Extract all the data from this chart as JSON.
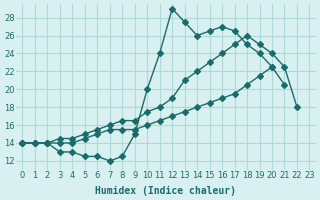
{
  "title": "",
  "xlabel": "Humidex (Indice chaleur)",
  "ylabel": "",
  "bg_color": "#d8f0f0",
  "grid_color": "#b0d8d8",
  "line_color": "#1a6b6b",
  "xlim": [
    -0.5,
    23.5
  ],
  "ylim": [
    11,
    29.5
  ],
  "yticks": [
    12,
    14,
    16,
    18,
    20,
    22,
    24,
    26,
    28
  ],
  "xticks": [
    0,
    1,
    2,
    3,
    4,
    5,
    6,
    7,
    8,
    9,
    10,
    11,
    12,
    13,
    14,
    15,
    16,
    17,
    18,
    19,
    20,
    21,
    22,
    23
  ],
  "series1_x": [
    0,
    1,
    2,
    3,
    4,
    5,
    6,
    7,
    8,
    9,
    10,
    11,
    12,
    13,
    14,
    15,
    16,
    17,
    18,
    19,
    20,
    21,
    22,
    23
  ],
  "series1_y": [
    14,
    14,
    14,
    13,
    13,
    12.5,
    12.5,
    12,
    12.5,
    15,
    20,
    24,
    29,
    27.5,
    26,
    26.5,
    27,
    26.5,
    25,
    24,
    22.5,
    20.5,
    null,
    null
  ],
  "series2_x": [
    0,
    1,
    2,
    3,
    4,
    5,
    6,
    7,
    8,
    9,
    10,
    11,
    12,
    13,
    14,
    15,
    16,
    17,
    18,
    19,
    20,
    21,
    22,
    23
  ],
  "series2_y": [
    14,
    14,
    14,
    14.5,
    14.5,
    15,
    15.5,
    16,
    16.5,
    16.5,
    17.5,
    18,
    19,
    21,
    22,
    23,
    24,
    25,
    26,
    25,
    24,
    22.5,
    18,
    null
  ],
  "series3_x": [
    0,
    1,
    2,
    3,
    4,
    5,
    6,
    7,
    8,
    9,
    10,
    11,
    12,
    13,
    14,
    15,
    16,
    17,
    18,
    19,
    20,
    21,
    22,
    23
  ],
  "series3_y": [
    14,
    14,
    14,
    14,
    14,
    14.5,
    15,
    15.5,
    15.5,
    15.5,
    16,
    16.5,
    17,
    17.5,
    18,
    18.5,
    19,
    19.5,
    20.5,
    21.5,
    22.5,
    null,
    null,
    null
  ]
}
